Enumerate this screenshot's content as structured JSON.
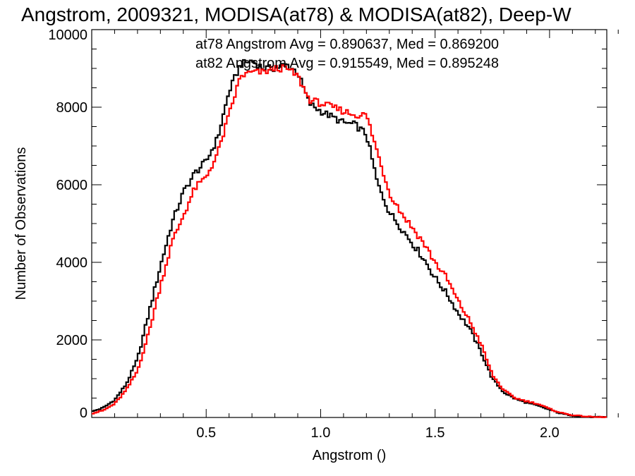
{
  "chart_data": {
    "type": "line",
    "step": true,
    "title": "Angstrom, 2009321, MODISA(at78) & MODISA(at82), Deep-W",
    "xlabel": "Angstrom ()",
    "ylabel": "Number of Observations",
    "xlim": [
      0.0,
      2.25
    ],
    "ylim": [
      0,
      10000
    ],
    "xticks": [
      0.5,
      1.0,
      1.5,
      2.0
    ],
    "xtick_labels": [
      "0.5",
      "1.0",
      "1.5",
      "2.0"
    ],
    "yticks": [
      0,
      2000,
      4000,
      6000,
      8000,
      10000
    ],
    "ytick_labels": [
      "0",
      "2000",
      "4000",
      "6000",
      "8000",
      "10000"
    ],
    "grid": false,
    "legend_position": "top-right",
    "series": [
      {
        "label": "at78 Angstrom Avg = 0.890637, Med = 0.869200",
        "color": "#000000",
        "x": [
          0.0,
          0.05,
          0.1,
          0.15,
          0.2,
          0.25,
          0.3,
          0.35,
          0.4,
          0.45,
          0.5,
          0.55,
          0.6,
          0.65,
          0.7,
          0.75,
          0.8,
          0.85,
          0.9,
          0.95,
          1.0,
          1.05,
          1.1,
          1.15,
          1.2,
          1.25,
          1.3,
          1.35,
          1.4,
          1.45,
          1.5,
          1.55,
          1.6,
          1.65,
          1.7,
          1.75,
          1.8,
          1.85,
          1.9,
          1.95,
          2.0,
          2.05,
          2.1,
          2.15,
          2.2
        ],
        "y": [
          150,
          250,
          450,
          850,
          1500,
          2700,
          3900,
          5000,
          5800,
          6300,
          6600,
          7200,
          8400,
          9100,
          9200,
          9000,
          9000,
          9100,
          8900,
          8100,
          7900,
          7750,
          7600,
          7550,
          7300,
          6000,
          5300,
          4900,
          4500,
          4100,
          3600,
          3200,
          2700,
          2300,
          1700,
          1000,
          650,
          480,
          380,
          300,
          200,
          100,
          50,
          20,
          10
        ]
      },
      {
        "label": "at82 Angstrom Avg = 0.915549, Med = 0.895248",
        "color": "#ff0000",
        "x": [
          0.0,
          0.05,
          0.1,
          0.15,
          0.2,
          0.25,
          0.3,
          0.35,
          0.4,
          0.45,
          0.5,
          0.55,
          0.6,
          0.65,
          0.7,
          0.75,
          0.8,
          0.85,
          0.9,
          0.95,
          1.0,
          1.05,
          1.1,
          1.15,
          1.2,
          1.25,
          1.3,
          1.35,
          1.4,
          1.45,
          1.5,
          1.55,
          1.6,
          1.65,
          1.7,
          1.75,
          1.8,
          1.85,
          1.9,
          1.95,
          2.0,
          2.05,
          2.1,
          2.15,
          2.2
        ],
        "y": [
          100,
          180,
          350,
          700,
          1200,
          2200,
          3400,
          4500,
          5200,
          5900,
          6200,
          6800,
          7800,
          8800,
          8900,
          8900,
          9000,
          9000,
          8800,
          8200,
          8100,
          8000,
          7900,
          7800,
          7800,
          6800,
          5800,
          5300,
          4900,
          4500,
          4000,
          3600,
          3000,
          2500,
          1900,
          1100,
          700,
          500,
          420,
          350,
          220,
          120,
          60,
          30,
          10
        ]
      }
    ]
  }
}
